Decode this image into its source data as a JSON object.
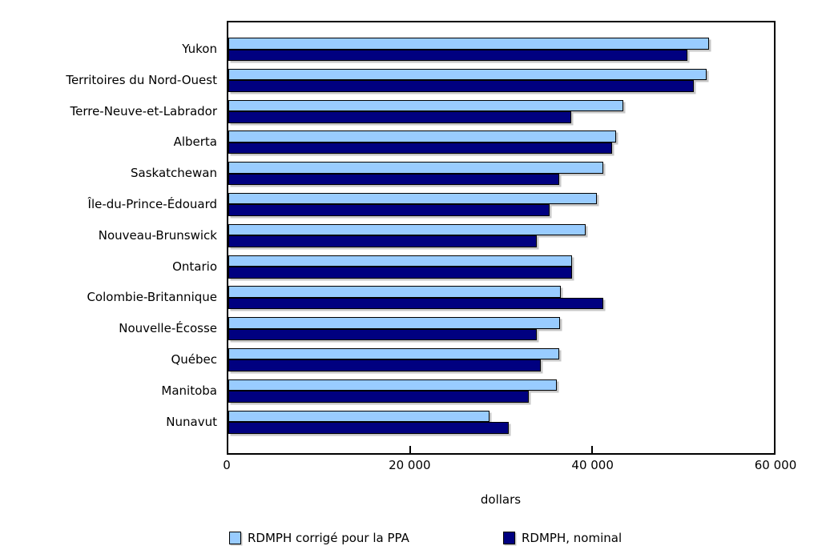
{
  "chart_data": {
    "type": "bar",
    "orientation": "horizontal",
    "title": "",
    "xlabel": "dollars",
    "ylabel": "",
    "xlim": [
      0,
      60000
    ],
    "grid": false,
    "legend_position": "bottom",
    "categories": [
      "Yukon",
      "Territoires du Nord-Ouest",
      "Terre-Neuve-et-Labrador",
      "Alberta",
      "Saskatchewan",
      "Île-du-Prince-Édouard",
      "Nouveau-Brunswick",
      "Ontario",
      "Colombie-Britannique",
      "Nouvelle-Écosse",
      "Québec",
      "Manitoba",
      "Nunavut"
    ],
    "series": [
      {
        "name": "RDMPH corrigé pour la PPA",
        "color": "#99CCFF",
        "values": [
          52900,
          52600,
          43400,
          42600,
          41200,
          40500,
          39300,
          37800,
          36600,
          36500,
          36400,
          36100,
          28700
        ]
      },
      {
        "name": "RDMPH, nominal",
        "color": "#000080",
        "values": [
          50500,
          51200,
          37700,
          42200,
          36400,
          35300,
          33900,
          37800,
          41200,
          33900,
          34400,
          33000,
          30800
        ]
      }
    ],
    "xticks": [
      {
        "value": 0,
        "label": "0"
      },
      {
        "value": 20000,
        "label": "20 000"
      },
      {
        "value": 40000,
        "label": "40 000"
      },
      {
        "value": 60000,
        "label": "60 000"
      }
    ],
    "inner_tick_values": [
      20000,
      40000
    ]
  },
  "colors": {
    "axis": "#000000",
    "background": "#ffffff",
    "text": "#000000"
  }
}
